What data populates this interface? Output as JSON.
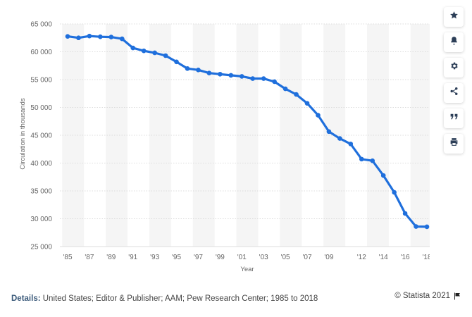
{
  "chart_data": {
    "type": "line",
    "xlabel": "Year",
    "ylabel": "Circulation in thousands",
    "ylim": [
      25000,
      65000
    ],
    "yticks": [
      25000,
      30000,
      35000,
      40000,
      45000,
      50000,
      55000,
      60000,
      65000
    ],
    "ytick_labels": [
      "25 000",
      "30 000",
      "35 000",
      "40 000",
      "45 000",
      "50 000",
      "55 000",
      "60 000",
      "65 000"
    ],
    "xticks": [
      1985,
      1987,
      1989,
      1991,
      1993,
      1995,
      1997,
      1999,
      2001,
      2003,
      2005,
      2007,
      2009,
      2012,
      2014,
      2016,
      2018
    ],
    "xtick_labels": [
      "'85",
      "'87",
      "'89",
      "'91",
      "'93",
      "'95",
      "'97",
      "'99",
      "'01",
      "'03",
      "'05",
      "'07",
      "'09",
      "'12",
      "'14",
      "'16",
      "'18"
    ],
    "x": [
      1985,
      1986,
      1987,
      1988,
      1989,
      1990,
      1991,
      1992,
      1993,
      1994,
      1995,
      1996,
      1997,
      1998,
      1999,
      2000,
      2001,
      2002,
      2003,
      2004,
      2005,
      2006,
      2007,
      2008,
      2009,
      2010,
      2011,
      2012,
      2013,
      2014,
      2015,
      2016,
      2017,
      2018
    ],
    "series": [
      {
        "values": [
          62766,
          62502,
          62826,
          62695,
          62649,
          62328,
          60687,
          60164,
          59812,
          59305,
          58193,
          56983,
          56728,
          56182,
          55979,
          55773,
          55578,
          55186,
          55185,
          54626,
          53345,
          52329,
          50742,
          48597,
          45653,
          44421,
          43433,
          40712,
          40419,
          37767,
          34746,
          30948,
          28600,
          28554
        ]
      }
    ],
    "grid": true,
    "line_color": "#1f6fdc"
  },
  "toolbar": {
    "icons": [
      "star-icon",
      "bell-icon",
      "gear-icon",
      "share-icon",
      "quote-icon",
      "print-icon"
    ]
  },
  "footer": {
    "details_label": "Details:",
    "details_text": " United States; Editor & Publisher; AAM; Pew Research Center; 1985 to 2018",
    "copyright": "© Statista 2021"
  }
}
